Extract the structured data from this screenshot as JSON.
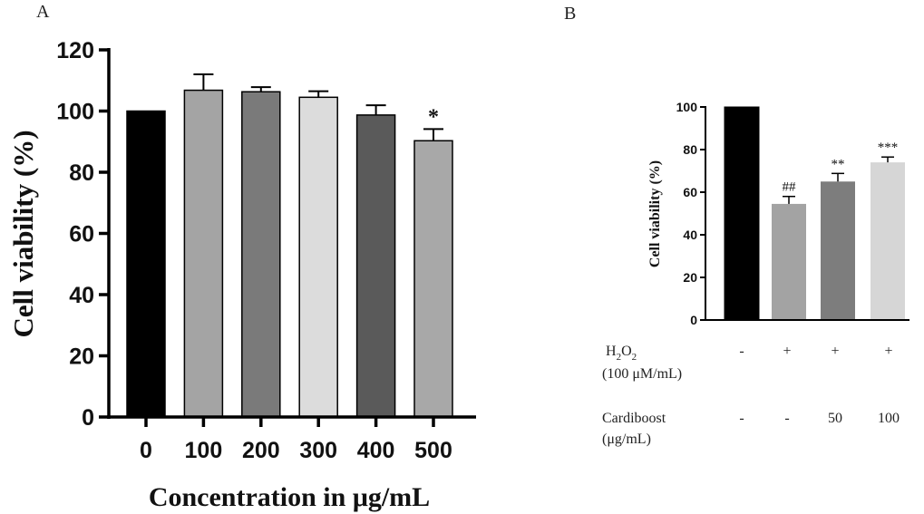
{
  "chart_data": [
    {
      "panel": "A",
      "type": "bar",
      "categories": [
        "0",
        "100",
        "200",
        "300",
        "400",
        "500"
      ],
      "values": [
        100,
        106.8,
        106.3,
        104.5,
        98.7,
        90.3
      ],
      "errors": [
        0,
        5.2,
        1.5,
        2.0,
        3.2,
        3.8
      ],
      "annotations": [
        "",
        "",
        "",
        "",
        "",
        "*"
      ],
      "colors": [
        "#000000",
        "#a4a4a4",
        "#7a7a7a",
        "#dcdcdc",
        "#5a5a5a",
        "#a8a8a8"
      ],
      "xlabel": "Concentration in μg/mL",
      "ylabel": "Cell viability (%)",
      "ylim": [
        0,
        120
      ],
      "yticks": [
        "0",
        "20",
        "40",
        "60",
        "80",
        "100",
        "120"
      ],
      "grid": false
    },
    {
      "panel": "B",
      "type": "bar",
      "values": [
        100,
        54.5,
        65,
        74
      ],
      "errors": [
        0,
        3.5,
        3.8,
        2.5
      ],
      "annotations": [
        "",
        "##",
        "**",
        "***"
      ],
      "colors": [
        "#000000",
        "#a3a3a3",
        "#7d7d7d",
        "#d6d6d6"
      ],
      "ylabel": "Cell viability (%)",
      "ylim": [
        0,
        100
      ],
      "yticks": [
        "0",
        "20",
        "40",
        "60",
        "80",
        "100"
      ],
      "grid": false,
      "conditions": [
        {
          "label_main": "H",
          "label_sub1": "2",
          "label_mid": "O",
          "label_sub2": "2",
          "label_line2": "(100 μM/mL)",
          "values": [
            "-",
            "+",
            "+",
            "+"
          ]
        },
        {
          "label_main": "Cardiboost",
          "label_line2": "(μg/mL)",
          "values": [
            "-",
            "-",
            "50",
            "100"
          ]
        }
      ]
    }
  ],
  "panels": {
    "a_letter": "A",
    "b_letter": "B"
  }
}
